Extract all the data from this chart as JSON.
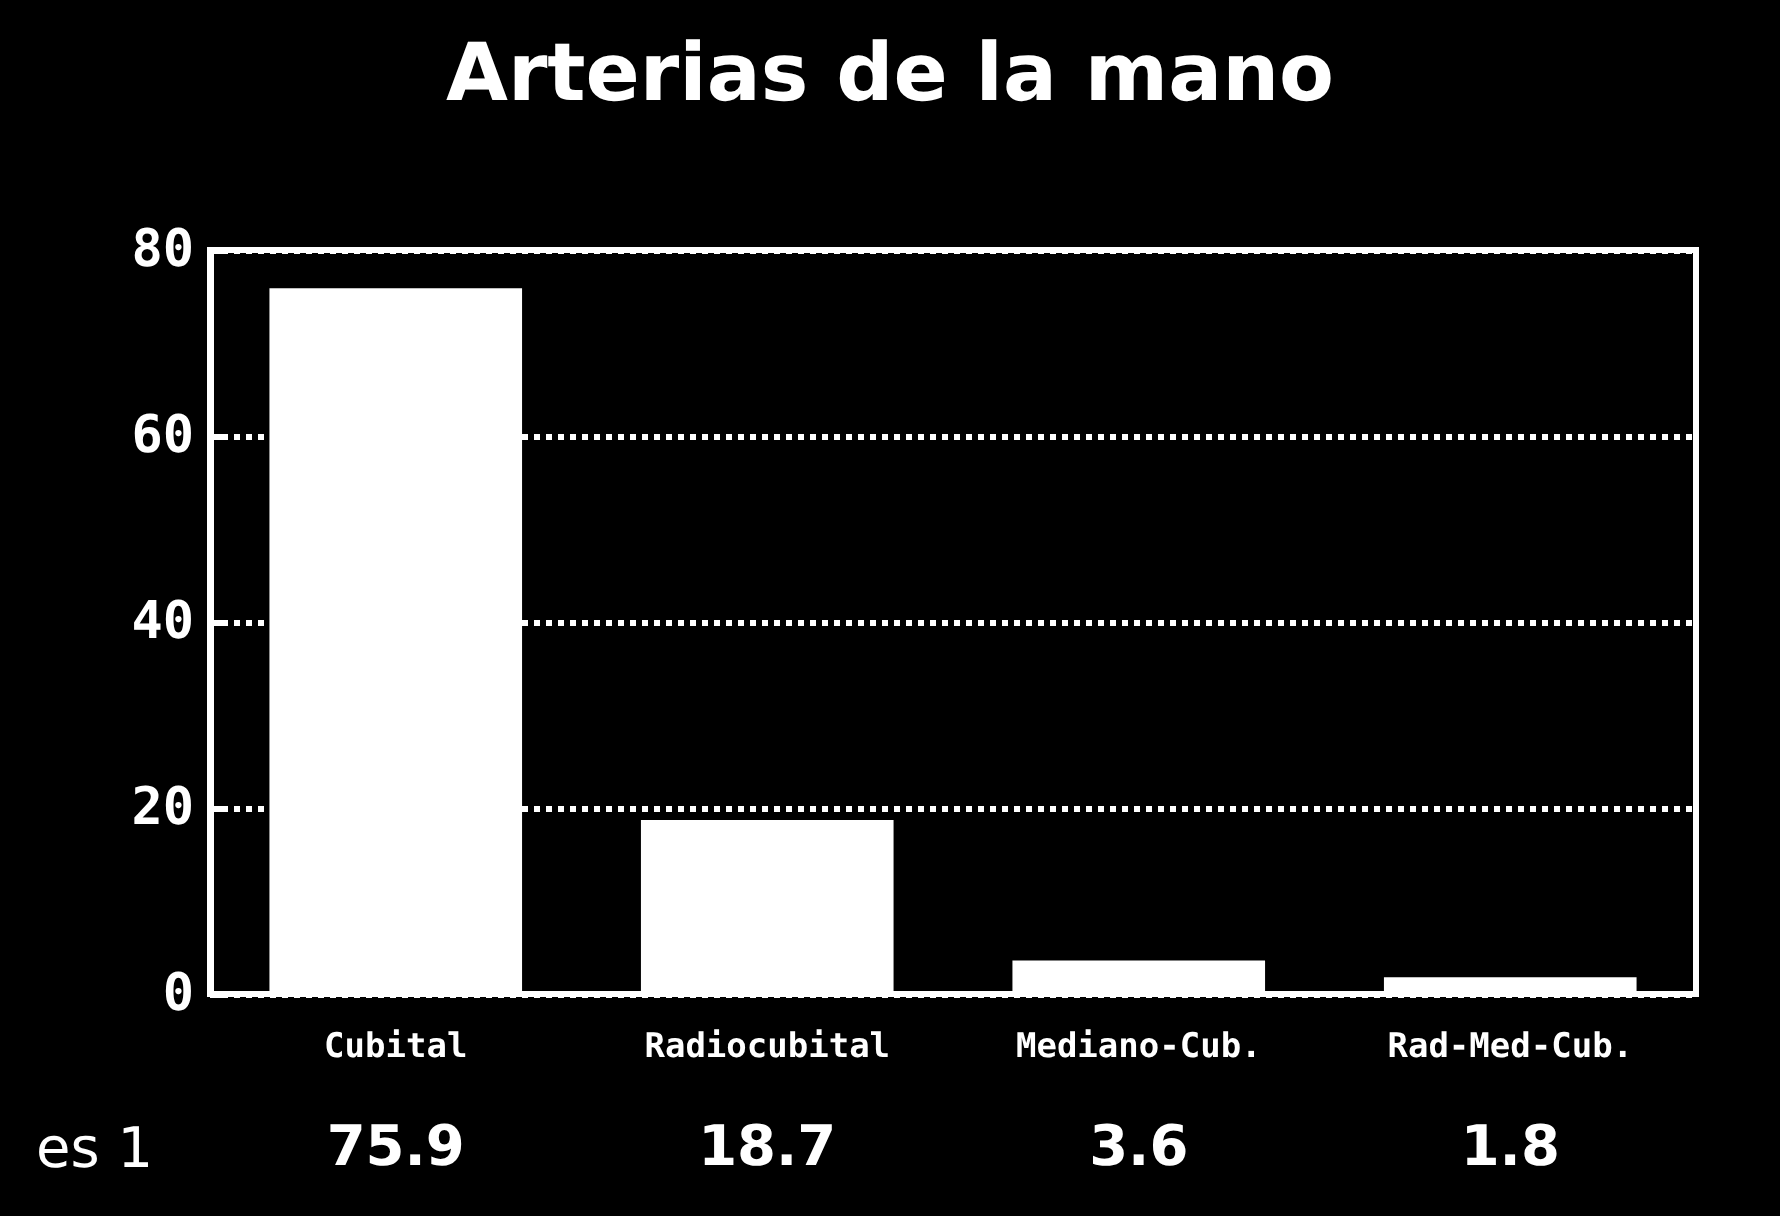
{
  "chart_data": {
    "type": "bar",
    "title": "Arterias de la mano",
    "categories": [
      "Cubital",
      "Radiocubital",
      "Mediano-Cub.",
      "Rad-Med-Cub."
    ],
    "series": [
      {
        "name": "es 1",
        "color": "#ffffff",
        "values": [
          75.9,
          18.7,
          3.6,
          1.8
        ]
      }
    ],
    "ylim": [
      0,
      80
    ],
    "yticks": [
      0,
      20,
      40,
      60,
      80
    ],
    "grid": "y",
    "data_labels": true,
    "legend": false
  }
}
